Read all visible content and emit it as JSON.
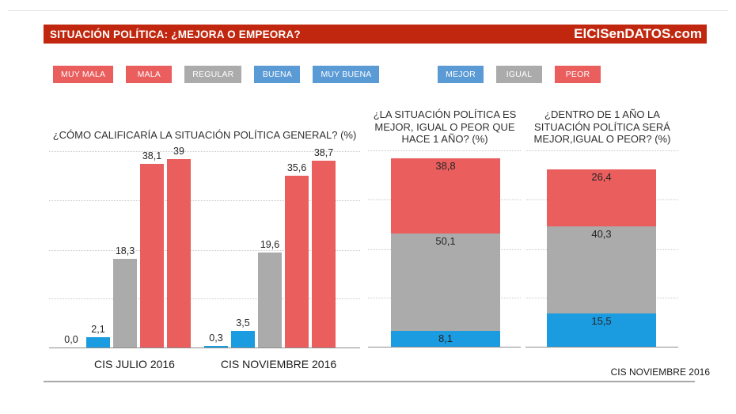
{
  "header": {
    "title": "SITUACIÓN POLÍTICA: ¿MEJORA O EMPEORA?",
    "brand": "ElCISenDATOS.com"
  },
  "footer": {
    "source": "CIS NOVIEMBRE 2016"
  },
  "colors": {
    "header_red": "#c1270e",
    "red": "#ea5e5e",
    "gray": "#ababab",
    "blue": "#1b9be0",
    "legend_blue": "#5b9bd5"
  },
  "legend_left": [
    {
      "label": "MUY MALA",
      "color": "red"
    },
    {
      "label": "MALA",
      "color": "red"
    },
    {
      "label": "REGULAR",
      "color": "gray"
    },
    {
      "label": "BUENA",
      "color": "legend_blue"
    },
    {
      "label": "MUY BUENA",
      "color": "legend_blue"
    }
  ],
  "legend_right": [
    {
      "label": "MEJOR",
      "color": "legend_blue"
    },
    {
      "label": "IGUAL",
      "color": "gray"
    },
    {
      "label": "PEOR",
      "color": "red"
    }
  ],
  "chart_data": [
    {
      "type": "bar",
      "title": "¿CÓMO CALIFICARÍA LA SITUACIÓN POLÍTICA GENERAL? (%)",
      "categories": [
        "CIS JULIO 2016",
        "CIS NOVIEMBRE 2016"
      ],
      "series": [
        {
          "name": "MUY BUENA",
          "color": "blue",
          "values": [
            0.0,
            0.3
          ],
          "labels": [
            "0,0",
            "0,3"
          ]
        },
        {
          "name": "BUENA",
          "color": "blue",
          "values": [
            2.1,
            3.5
          ],
          "labels": [
            "2,1",
            "3,5"
          ]
        },
        {
          "name": "REGULAR",
          "color": "gray",
          "values": [
            18.3,
            19.6
          ],
          "labels": [
            "18,3",
            "19,6"
          ]
        },
        {
          "name": "MALA",
          "color": "red",
          "values": [
            38.1,
            35.6
          ],
          "labels": [
            "38,1",
            "35,6"
          ]
        },
        {
          "name": "MUY MALA",
          "color": "red",
          "values": [
            39.0,
            38.7
          ],
          "labels": [
            "39",
            "38,7"
          ]
        }
      ],
      "ylabel": "%",
      "ylim": [
        0,
        42
      ],
      "gridlines": [
        10,
        20,
        30,
        40
      ],
      "grid": true,
      "legend_position": "top"
    },
    {
      "type": "stacked-bar",
      "title": "¿LA SITUACIÓN POLÍTICA ES MEJOR, IGUAL O PEOR QUE HACE 1 AÑO? (%)",
      "title_lines": [
        "¿LA SITUACIÓN POLÍTICA ES",
        "MEJOR, IGUAL O PEOR QUE",
        "HACE 1 AÑO? (%)"
      ],
      "segments": [
        {
          "name": "MEJOR",
          "color": "blue",
          "value": 8.1,
          "label": "8,1"
        },
        {
          "name": "IGUAL",
          "color": "gray",
          "value": 50.1,
          "label": "50,1"
        },
        {
          "name": "PEOR",
          "color": "red",
          "value": 38.8,
          "label": "38,8"
        }
      ],
      "ylim": [
        0,
        100
      ],
      "grid": true
    },
    {
      "type": "stacked-bar",
      "title": "¿DENTRO DE 1 AÑO LA SITUACIÓN POLÍTICA SERÁ MEJOR,IGUAL O PEOR? (%)",
      "title_lines": [
        "¿DENTRO DE 1 AÑO LA",
        "SITUACIÓN POLÍTICA SERÁ",
        "MEJOR,IGUAL O PEOR? (%)"
      ],
      "segments": [
        {
          "name": "MEJOR",
          "color": "blue",
          "value": 15.5,
          "label": "15,5"
        },
        {
          "name": "IGUAL",
          "color": "gray",
          "value": 40.3,
          "label": "40,3"
        },
        {
          "name": "PEOR",
          "color": "red",
          "value": 26.4,
          "label": "26,4"
        }
      ],
      "ylim": [
        0,
        100
      ],
      "grid": true
    }
  ]
}
